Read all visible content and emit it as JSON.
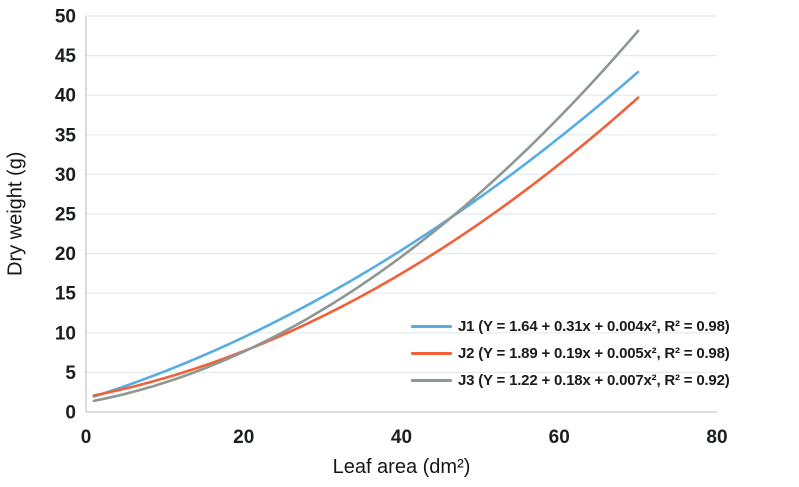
{
  "figure": {
    "background": "#ffffff",
    "grid_color": "#e5eaea",
    "axis_line_color": "#c3c9c9",
    "tick_text_color": "#1c1f1f"
  },
  "chart_data": {
    "type": "line",
    "xlabel": "Leaf area (dm²)",
    "ylabel": "Dry weight (g)",
    "xlim": [
      0,
      80
    ],
    "ylim": [
      0,
      50
    ],
    "x_ticks": [
      "0",
      "20",
      "40",
      "60",
      "80"
    ],
    "y_ticks": [
      "0",
      "5",
      "10",
      "15",
      "20",
      "25",
      "30",
      "35",
      "40",
      "45",
      "50"
    ],
    "grid": "horizontal gridlines only",
    "legend_position": "inside lower-right",
    "curve_x_range": [
      1,
      70
    ],
    "series": [
      {
        "name": "J1",
        "label": "J1 (Y = 1.64 + 0.31x + 0.004x², R² = 0.98)",
        "color": "#58ACE4",
        "equation": {
          "intercept": 1.64,
          "linear": 0.31,
          "quadratic": 0.004
        },
        "r_squared": 0.98,
        "sample_x": [
          1,
          10,
          20,
          30,
          40,
          50,
          60,
          70
        ],
        "sample_y": [
          1.95,
          5.14,
          9.44,
          14.54,
          20.44,
          27.14,
          34.64,
          42.94
        ]
      },
      {
        "name": "J2",
        "label": "J2 (Y = 1.89 + 0.19x + 0.005x², R² = 0.98)",
        "color": "#F0613A",
        "equation": {
          "intercept": 1.89,
          "linear": 0.19,
          "quadratic": 0.005
        },
        "r_squared": 0.98,
        "sample_x": [
          1,
          10,
          20,
          30,
          40,
          50,
          60,
          70
        ],
        "sample_y": [
          2.09,
          4.29,
          7.69,
          12.09,
          17.49,
          23.89,
          31.29,
          39.69
        ]
      },
      {
        "name": "J3",
        "label": "J3 (Y = 1.22 + 0.18x + 0.007x², R² = 0.92)",
        "color": "#8E9793",
        "equation": {
          "intercept": 1.22,
          "linear": 0.18,
          "quadratic": 0.007
        },
        "r_squared": 0.92,
        "sample_x": [
          1,
          10,
          20,
          30,
          40,
          50,
          60,
          70
        ],
        "sample_y": [
          1.41,
          3.72,
          7.62,
          12.92,
          19.62,
          27.72,
          37.22,
          48.12
        ]
      }
    ]
  }
}
